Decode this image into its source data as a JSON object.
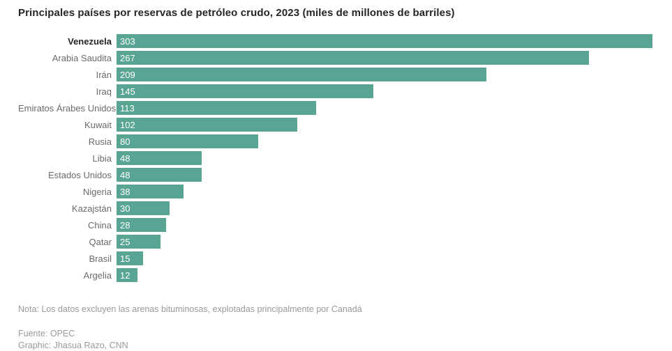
{
  "title": "Principales países por reservas de petróleo crudo, 2023 (miles de millones de barriles)",
  "chart_data": {
    "type": "bar",
    "orientation": "horizontal",
    "title": "Principales países por reservas de petróleo crudo, 2023 (miles de millones de barriles)",
    "categories": [
      "Venezuela",
      "Arabia Saudita",
      "Irán",
      "Iraq",
      "Emiratos Árabes Unidos",
      "Kuwait",
      "Rusia",
      "Libia",
      "Estados Unidos",
      "Nigeria",
      "Kazajstán",
      "China",
      "Qatar",
      "Brasil",
      "Argelia"
    ],
    "values": [
      303,
      267,
      209,
      145,
      113,
      102,
      80,
      48,
      48,
      38,
      30,
      28,
      25,
      15,
      12
    ],
    "xlim": [
      0,
      303
    ],
    "highlight_category": "Venezuela",
    "bar_color": "#58a593",
    "value_label_color": "#ffffff",
    "grid": "off",
    "legend": "none",
    "value_labels": "inside-left"
  },
  "footer": {
    "note": "Nota: Los datos excluyen las arenas bituminosas, explotadas principalmente por Canadá",
    "source": "Fuente: OPEC",
    "credit": "Graphic: Jhasua Razo, CNN"
  }
}
